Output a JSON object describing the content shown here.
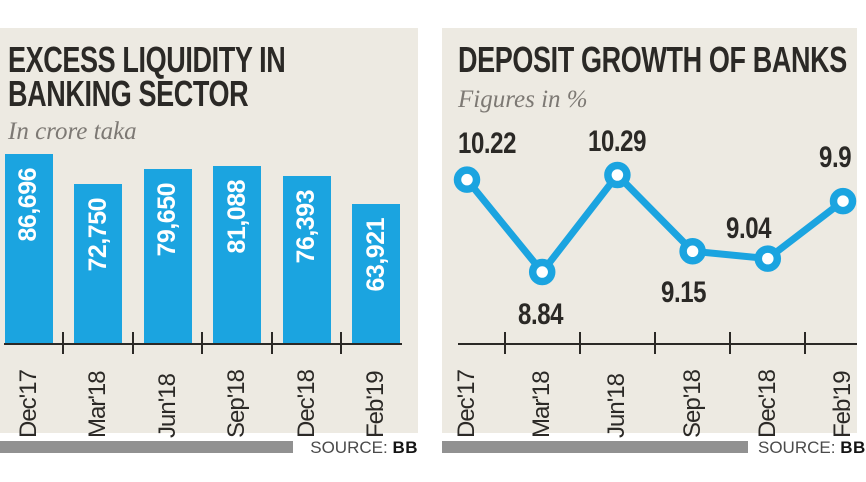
{
  "left_chart": {
    "title_line1": "EXCESS LIQUIDITY IN",
    "title_line2": "BANKING SECTOR",
    "subtitle": "In crore taka",
    "source_label": "SOURCE:",
    "source_value": "BB"
  },
  "right_chart": {
    "title": "DEPOSIT GROWTH OF BANKS",
    "subtitle": "Figures in %",
    "source_label": "SOURCE:",
    "source_value": "BB"
  },
  "chart_data": [
    {
      "type": "bar",
      "title": "EXCESS LIQUIDITY IN BANKING SECTOR",
      "unit_note": "In crore taka",
      "categories": [
        "Dec'17",
        "Mar'18",
        "Jun'18",
        "Sep'18",
        "Dec'18",
        "Feb'19"
      ],
      "values": [
        86696,
        72750,
        79650,
        81088,
        76393,
        63921
      ],
      "value_labels": [
        "86,696",
        "72,750",
        "79,650",
        "81,088",
        "76,393",
        "63,921"
      ],
      "ylim": [
        0,
        86696
      ],
      "grid": false,
      "source": "BB"
    },
    {
      "type": "line",
      "title": "DEPOSIT GROWTH OF BANKS",
      "unit_note": "Figures in %",
      "categories": [
        "Dec'17",
        "Mar'18",
        "Jun'18",
        "Sep'18",
        "Dec'18",
        "Feb'19"
      ],
      "values": [
        10.22,
        8.84,
        10.29,
        9.15,
        9.04,
        9.9
      ],
      "value_labels": [
        "10.22",
        "8.84",
        "10.29",
        "9.15",
        "9.04",
        "9.9"
      ],
      "marker": "circle-white-fill",
      "grid": false,
      "source": "BB"
    }
  ],
  "colors": {
    "accent_blue": "#1ba4e0",
    "panel_bg": "#edeae2",
    "text_dark": "#2b2926",
    "text_gray": "#7d7974",
    "source_bar_gray": "#919191",
    "marker_fill": "#ffffff"
  }
}
